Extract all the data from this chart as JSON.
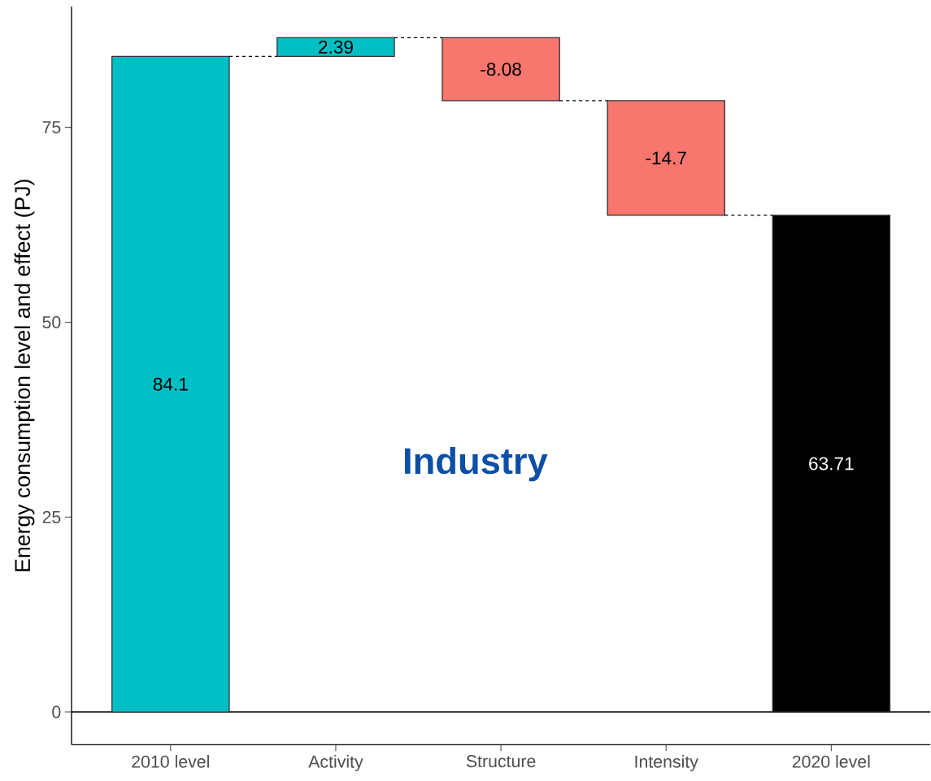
{
  "chart_data": {
    "type": "bar",
    "title": "Industry",
    "ylabel": "Energy consumption level and effect (PJ)",
    "categories": [
      "2010 level",
      "Activity",
      "Structure",
      "Intensity",
      "2020 level"
    ],
    "values": [
      84.1,
      2.39,
      -8.08,
      -14.7,
      63.71
    ],
    "base": [
      0,
      84.1,
      86.49,
      78.41,
      0
    ],
    "colors": [
      "#00bfc4",
      "#00bfc4",
      "#f8766d",
      "#f8766d",
      "#000000"
    ],
    "data_labels": true,
    "ylim": [
      -4.2,
      90.5
    ],
    "yticks": [
      0,
      25,
      50,
      75
    ],
    "ref_lines": [
      {
        "axis": "y",
        "value": 0
      }
    ],
    "grid": false
  }
}
